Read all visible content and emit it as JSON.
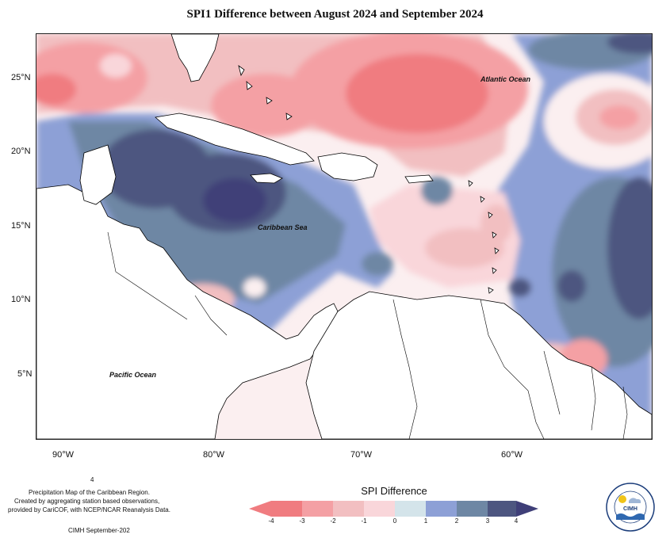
{
  "title": "SPI1 Difference between August 2024 and September 2024",
  "colors": {
    "neg4": "#f07c80",
    "neg3": "#f4a0a4",
    "neg2": "#f2bfc1",
    "neg1": "#f9d6da",
    "zero": "#fbeff0",
    "pos1": "#d4e4ea",
    "pos2": "#8da0d6",
    "pos3": "#6e87a4",
    "pos4": "#4d5680",
    "land": "#ffffff",
    "border": "#000000"
  },
  "axes": {
    "lon_ticks": [
      "90°W",
      "80°W",
      "70°W",
      "60°W"
    ],
    "lat_ticks": [
      "25°N",
      "20°N",
      "15°N",
      "10°N",
      "5°N"
    ]
  },
  "labels": {
    "atlantic": "Atlantic Ocean",
    "caribbean": "Caribbean Sea",
    "pacific": "Pacific Ocean"
  },
  "legend": {
    "title": "SPI Difference",
    "ticks": [
      "-4",
      "-3",
      "-2",
      "-1",
      "0",
      "1",
      "2",
      "3",
      "4"
    ]
  },
  "credits": {
    "line0": "4",
    "line1": "Precipitation Map of the Caribbean Region.",
    "line2": "Created by aggregating station based observations,",
    "line3": "provided by CariCOF, with NCEP/NCAR Reanalysis Data.",
    "line4": "CIMH September-202"
  },
  "logo": {
    "name": "CIMH",
    "ring_text": "Caribbean Institute for Meteorology and Hydrology"
  }
}
